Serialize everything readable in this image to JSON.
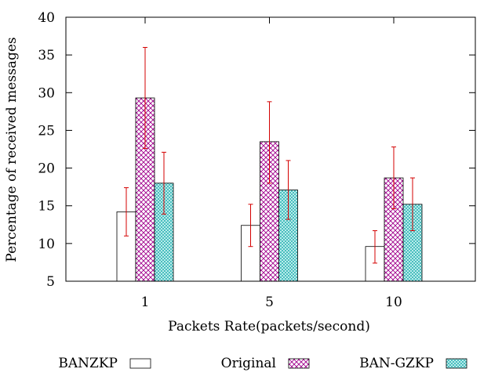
{
  "chart_data": {
    "type": "bar",
    "title": "",
    "xlabel": "Packets Rate(packets/second)",
    "ylabel": "Percentage of received messages",
    "ylim": [
      5,
      40
    ],
    "yticks": [
      5,
      10,
      15,
      20,
      25,
      30,
      35,
      40
    ],
    "categories": [
      "1",
      "5",
      "10"
    ],
    "legend_position": "bottom",
    "series": [
      {
        "name": "BANZKP",
        "pattern": "none",
        "color": "#000000",
        "values": [
          14.2,
          12.4,
          9.6
        ],
        "error_low": [
          11.0,
          9.6,
          7.4
        ],
        "error_high": [
          17.4,
          15.2,
          11.7
        ]
      },
      {
        "name": "Original",
        "pattern": "crosshatch",
        "color": "#a0008c",
        "values": [
          29.3,
          23.5,
          18.7
        ],
        "error_low": [
          22.6,
          18.0,
          14.6
        ],
        "error_high": [
          36.0,
          28.8,
          22.8
        ]
      },
      {
        "name": "BAN-GZKP",
        "pattern": "dots",
        "color": "#00a0a0",
        "values": [
          18.0,
          17.1,
          15.2
        ],
        "error_low": [
          13.9,
          13.2,
          11.7
        ],
        "error_high": [
          22.1,
          21.0,
          18.7
        ]
      }
    ],
    "error_bar_color": "#d40000"
  }
}
